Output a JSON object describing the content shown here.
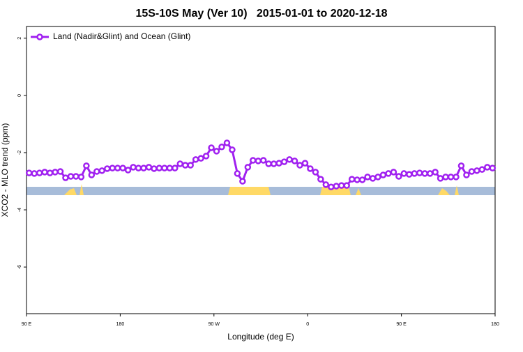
{
  "chart_data": {
    "type": "line",
    "title": "15S-10S May (Ver 10)   2015-01-01 to 2020-12-18",
    "x_label": "Longitude (deg E)",
    "y_label": "XCO2 - MLO trend (ppm)",
    "legend_position": "top-left",
    "xlim": [
      90,
      540
    ],
    "ylim": [
      -7.63,
      2.41
    ],
    "xticks": [
      {
        "value": 90,
        "label": "90 E"
      },
      180,
      {
        "value": 270,
        "label": "90 W"
      },
      {
        "value": 360,
        "label": "0"
      },
      {
        "value": 450,
        "label": "90 E"
      },
      {
        "value": 540,
        "label": "180"
      }
    ],
    "yticks": [
      2,
      0,
      -2,
      -4,
      -6
    ],
    "x": [
      92.5,
      97.5,
      102.5,
      107.5,
      112.5,
      117.5,
      122.5,
      127.5,
      132.5,
      137.5,
      142.5,
      147.5,
      152.5,
      157.5,
      162.5,
      167.5,
      172.5,
      177.5,
      182.5,
      187.5,
      192.5,
      197.5,
      202.5,
      207.5,
      212.5,
      217.5,
      222.5,
      227.5,
      232.5,
      237.5,
      242.5,
      247.5,
      252.5,
      257.5,
      262.5,
      267.5,
      272.5,
      277.5,
      282.5,
      287.5,
      292.5,
      297.5,
      302.5,
      307.5,
      312.5,
      317.5,
      322.5,
      327.5,
      332.5,
      337.5,
      342.5,
      347.5,
      352.5,
      357.5,
      362.5,
      367.5,
      372.5,
      377.5,
      382.5,
      387.5,
      392.5,
      397.5,
      402.5,
      407.5,
      412.5,
      417.5,
      422.5,
      427.5,
      432.5,
      437.5,
      442.5,
      447.5,
      452.5,
      457.5,
      462.5,
      467.5,
      472.5,
      477.5,
      482.5,
      487.5,
      492.5,
      497.5,
      502.5,
      507.5,
      512.5,
      517.5,
      522.5,
      527.5,
      532.5,
      537.5
    ],
    "series": [
      {
        "name": "Land (Nadir&Glint) and Ocean (Glint)",
        "color": "#a020f0",
        "values": [
          -2.71,
          -2.73,
          -2.71,
          -2.68,
          -2.71,
          -2.68,
          -2.66,
          -2.88,
          -2.83,
          -2.83,
          -2.85,
          -2.46,
          -2.78,
          -2.66,
          -2.63,
          -2.56,
          -2.54,
          -2.54,
          -2.54,
          -2.61,
          -2.51,
          -2.54,
          -2.54,
          -2.51,
          -2.56,
          -2.54,
          -2.54,
          -2.54,
          -2.54,
          -2.39,
          -2.44,
          -2.44,
          -2.24,
          -2.2,
          -2.12,
          -1.83,
          -1.95,
          -1.8,
          -1.66,
          -1.9,
          -2.73,
          -3.0,
          -2.51,
          -2.27,
          -2.29,
          -2.27,
          -2.39,
          -2.39,
          -2.37,
          -2.32,
          -2.24,
          -2.29,
          -2.44,
          -2.37,
          -2.56,
          -2.68,
          -2.93,
          -3.12,
          -3.2,
          -3.17,
          -3.15,
          -3.15,
          -2.93,
          -2.95,
          -2.95,
          -2.85,
          -2.9,
          -2.85,
          -2.78,
          -2.73,
          -2.68,
          -2.83,
          -2.73,
          -2.76,
          -2.73,
          -2.71,
          -2.73,
          -2.73,
          -2.68,
          -2.9,
          -2.85,
          -2.85,
          -2.85,
          -2.46,
          -2.78,
          -2.66,
          -2.63,
          -2.59,
          -2.51,
          -2.54
        ]
      }
    ]
  }
}
